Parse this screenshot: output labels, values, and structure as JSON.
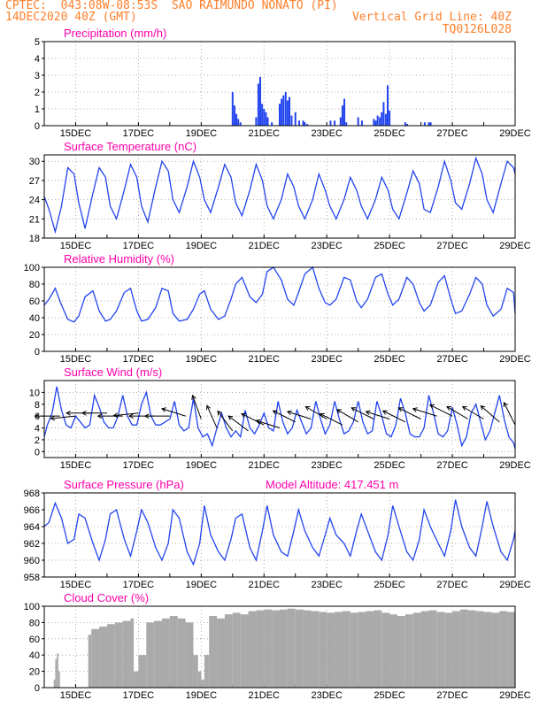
{
  "header": {
    "org_line": "CPTEC:  043:08W-08:53S  SAO RAIMUNDO NONATO (PI)",
    "date_line": "14DEC2020 40Z (GMT)",
    "grid_note": "Vertical Grid Line: 40Z",
    "code": "TQ0126L028"
  },
  "colors": {
    "header": "#ff7f2a",
    "panel_title": "#ff00aa",
    "series": "#2244ee",
    "cloud": "#aaaaaa",
    "grid": "#999999",
    "arrow": "#000000"
  },
  "x_axis": {
    "ticks": [
      "15DEC",
      "17DEC",
      "19DEC",
      "21DEC",
      "23DEC",
      "25DEC",
      "27DEC",
      "29DEC"
    ],
    "tick_days": [
      15,
      17,
      19,
      21,
      23,
      25,
      27,
      29
    ],
    "xlim_days": [
      14.0,
      29.0
    ]
  },
  "chart_data": [
    {
      "type": "bar",
      "title": "Precipitation (mm/h)",
      "ylim": [
        0,
        5
      ],
      "yticks": [
        0,
        1,
        2,
        3,
        4,
        5
      ],
      "x": [
        20.0,
        20.06,
        20.12,
        20.18,
        20.25,
        20.75,
        20.82,
        20.88,
        20.94,
        21.0,
        21.06,
        21.12,
        21.25,
        21.5,
        21.56,
        21.62,
        21.69,
        21.75,
        21.81,
        21.88,
        22.0,
        22.12,
        22.25,
        22.3,
        22.38,
        23.12,
        23.25,
        23.44,
        23.5,
        23.56,
        23.62,
        24.0,
        24.12,
        24.5,
        24.56,
        24.62,
        24.69,
        24.75,
        24.81,
        24.88,
        24.94,
        25.0,
        25.5,
        25.56,
        26.12,
        26.25,
        26.31
      ],
      "values": [
        2.0,
        1.2,
        0.7,
        0.4,
        0.2,
        0.5,
        2.5,
        2.9,
        1.3,
        1.0,
        0.8,
        0.5,
        0.2,
        1.3,
        1.6,
        1.8,
        2.0,
        1.5,
        1.7,
        0.6,
        0.8,
        0.3,
        0.3,
        0.2,
        0.1,
        0.3,
        0.3,
        0.5,
        1.2,
        1.6,
        0.2,
        0.5,
        0.3,
        0.4,
        0.3,
        0.6,
        0.5,
        0.8,
        1.4,
        0.7,
        2.4,
        0.9,
        0.2,
        0.1,
        0.2,
        0.2,
        0.2
      ]
    },
    {
      "type": "line",
      "title": "Surface Temperature (nC)",
      "ylim": [
        18,
        31
      ],
      "yticks": [
        18,
        21,
        24,
        27,
        30
      ],
      "x": [
        14.0,
        14.15,
        14.35,
        14.55,
        14.75,
        14.95,
        15.1,
        15.3,
        15.55,
        15.75,
        15.95,
        16.1,
        16.3,
        16.55,
        16.75,
        16.95,
        17.1,
        17.3,
        17.55,
        17.75,
        17.95,
        18.1,
        18.3,
        18.55,
        18.75,
        18.95,
        19.1,
        19.3,
        19.55,
        19.75,
        19.95,
        20.1,
        20.3,
        20.55,
        20.75,
        20.95,
        21.1,
        21.3,
        21.55,
        21.75,
        21.95,
        22.1,
        22.3,
        22.55,
        22.75,
        22.95,
        23.1,
        23.3,
        23.55,
        23.75,
        23.95,
        24.1,
        24.3,
        24.55,
        24.75,
        24.95,
        25.1,
        25.3,
        25.55,
        25.75,
        25.95,
        26.1,
        26.3,
        26.55,
        26.75,
        26.95,
        27.1,
        27.3,
        27.55,
        27.75,
        27.95,
        28.1,
        28.3,
        28.55,
        28.75,
        28.95,
        29.0
      ],
      "values": [
        24.5,
        22.5,
        19.0,
        23.0,
        29.0,
        28.0,
        23.5,
        19.5,
        25.0,
        29.0,
        27.5,
        23.0,
        21.0,
        25.5,
        29.5,
        27.5,
        23.0,
        20.5,
        26.0,
        30.0,
        28.5,
        24.0,
        22.0,
        26.0,
        30.0,
        27.5,
        24.0,
        22.0,
        26.0,
        29.5,
        27.5,
        23.5,
        21.5,
        25.5,
        29.5,
        27.0,
        23.0,
        21.0,
        24.0,
        28.0,
        26.0,
        23.0,
        21.0,
        24.0,
        28.0,
        25.5,
        23.0,
        21.0,
        24.0,
        27.5,
        25.5,
        23.0,
        21.0,
        24.0,
        27.5,
        25.5,
        22.5,
        21.0,
        25.0,
        28.5,
        26.5,
        22.5,
        22.0,
        26.0,
        30.0,
        27.0,
        23.5,
        22.5,
        26.5,
        30.5,
        28.0,
        24.0,
        22.0,
        26.5,
        30.0,
        29.0,
        28.0
      ]
    },
    {
      "type": "line",
      "title": "Relative Humidity (%)",
      "ylim": [
        0,
        100
      ],
      "yticks": [
        0,
        20,
        40,
        60,
        80,
        100
      ],
      "x": [
        14.0,
        14.15,
        14.35,
        14.55,
        14.75,
        14.95,
        15.1,
        15.3,
        15.55,
        15.75,
        15.95,
        16.1,
        16.3,
        16.55,
        16.75,
        16.95,
        17.1,
        17.3,
        17.55,
        17.75,
        17.95,
        18.1,
        18.3,
        18.55,
        18.75,
        18.95,
        19.1,
        19.3,
        19.55,
        19.75,
        19.95,
        20.1,
        20.3,
        20.55,
        20.75,
        20.95,
        21.1,
        21.3,
        21.55,
        21.75,
        21.95,
        22.1,
        22.3,
        22.55,
        22.75,
        22.95,
        23.1,
        23.3,
        23.55,
        23.75,
        23.95,
        24.1,
        24.3,
        24.55,
        24.75,
        24.95,
        25.1,
        25.3,
        25.55,
        25.75,
        25.95,
        26.1,
        26.3,
        26.55,
        26.75,
        26.95,
        27.1,
        27.3,
        27.55,
        27.75,
        27.95,
        28.1,
        28.3,
        28.55,
        28.75,
        28.95,
        29.0
      ],
      "values": [
        55,
        62,
        75,
        55,
        38,
        35,
        42,
        65,
        72,
        48,
        36,
        38,
        48,
        70,
        75,
        48,
        36,
        38,
        52,
        75,
        72,
        45,
        36,
        38,
        50,
        68,
        72,
        50,
        38,
        42,
        62,
        80,
        88,
        65,
        58,
        68,
        95,
        100,
        85,
        62,
        55,
        70,
        92,
        100,
        75,
        58,
        55,
        62,
        88,
        85,
        60,
        52,
        62,
        88,
        92,
        68,
        55,
        62,
        88,
        80,
        58,
        48,
        55,
        82,
        90,
        62,
        45,
        48,
        68,
        88,
        80,
        55,
        42,
        50,
        75,
        70,
        45
      ]
    },
    {
      "type": "line",
      "title": "Surface Wind (m/s)",
      "ylim": [
        -1,
        12
      ],
      "yticks": [
        0,
        2,
        4,
        6,
        8,
        10
      ],
      "x": [
        14.0,
        14.1,
        14.25,
        14.4,
        14.55,
        14.7,
        14.85,
        15.0,
        15.15,
        15.3,
        15.45,
        15.6,
        15.75,
        15.9,
        16.05,
        16.2,
        16.35,
        16.5,
        16.65,
        16.8,
        16.95,
        17.1,
        17.25,
        17.4,
        17.55,
        17.7,
        17.85,
        18.0,
        18.15,
        18.3,
        18.45,
        18.6,
        18.75,
        18.9,
        19.05,
        19.2,
        19.35,
        19.5,
        19.65,
        19.8,
        19.95,
        20.1,
        20.25,
        20.4,
        20.55,
        20.7,
        20.85,
        21.0,
        21.15,
        21.3,
        21.45,
        21.6,
        21.75,
        21.9,
        22.05,
        22.2,
        22.35,
        22.5,
        22.65,
        22.8,
        22.95,
        23.1,
        23.25,
        23.4,
        23.55,
        23.7,
        23.85,
        24.0,
        24.15,
        24.3,
        24.45,
        24.6,
        24.75,
        24.9,
        25.05,
        25.2,
        25.35,
        25.5,
        25.65,
        25.8,
        25.95,
        26.1,
        26.25,
        26.4,
        26.55,
        26.7,
        26.85,
        27.0,
        27.15,
        27.3,
        27.45,
        27.6,
        27.75,
        27.9,
        28.05,
        28.2,
        28.35,
        28.5,
        28.65,
        28.8,
        28.95,
        29.0
      ],
      "values": [
        2.5,
        4.5,
        6.5,
        11.0,
        7.0,
        4.5,
        4.0,
        6.0,
        5.0,
        4.0,
        4.5,
        9.5,
        7.5,
        5.0,
        4.0,
        4.0,
        6.0,
        9.5,
        6.0,
        4.5,
        4.5,
        8.0,
        10.0,
        6.0,
        4.5,
        4.5,
        5.0,
        5.5,
        8.5,
        4.5,
        3.5,
        4.0,
        9.0,
        4.0,
        2.5,
        3.0,
        1.0,
        4.0,
        6.5,
        4.0,
        2.5,
        3.5,
        2.5,
        7.0,
        4.0,
        3.0,
        4.5,
        6.5,
        4.0,
        3.5,
        8.5,
        5.0,
        3.0,
        4.0,
        7.0,
        5.0,
        3.0,
        4.0,
        8.5,
        5.5,
        3.0,
        4.5,
        8.5,
        5.5,
        3.0,
        3.5,
        5.0,
        8.5,
        5.0,
        3.0,
        3.5,
        8.5,
        6.0,
        3.0,
        2.5,
        4.5,
        9.0,
        6.5,
        3.0,
        2.5,
        2.5,
        4.0,
        9.5,
        6.5,
        3.0,
        2.5,
        3.5,
        7.5,
        4.5,
        1.0,
        2.5,
        6.5,
        8.0,
        5.0,
        2.0,
        3.5,
        6.5,
        9.5,
        5.5,
        2.5,
        1.5,
        0.5
      ],
      "arrows": {
        "x": [
          14.5,
          15.0,
          15.5,
          16.0,
          16.5,
          17.0,
          17.5,
          18.0,
          18.5,
          19.0,
          19.5,
          20.0,
          20.5,
          21.0,
          21.5,
          22.0,
          22.5,
          23.0,
          23.5,
          24.0,
          24.5,
          25.0,
          25.5,
          26.0,
          26.5,
          27.0,
          27.5,
          28.0,
          28.5,
          29.0
        ],
        "speed": [
          6.0,
          6.0,
          6.5,
          6.5,
          6.0,
          6.5,
          6.0,
          6.0,
          6.0,
          5.5,
          4.0,
          3.5,
          3.5,
          4.5,
          4.0,
          5.0,
          5.5,
          5.5,
          4.5,
          5.0,
          5.5,
          5.5,
          5.0,
          5.5,
          6.0,
          6.0,
          5.5,
          5.5,
          5.0,
          4.5
        ],
        "u": [
          -1.0,
          -1.0,
          -1.0,
          -1.0,
          -1.0,
          -1.0,
          -1.0,
          -1.0,
          -0.95,
          -0.35,
          -0.4,
          -0.6,
          -0.8,
          -0.9,
          -0.95,
          -0.9,
          -0.95,
          -0.85,
          -0.9,
          -0.85,
          -0.9,
          -0.95,
          -0.9,
          -0.9,
          -0.95,
          -0.9,
          -0.85,
          -0.85,
          -0.75,
          -0.45
        ],
        "v": [
          0.0,
          0.1,
          0.0,
          0.0,
          0.0,
          0.1,
          0.0,
          0.0,
          -0.3,
          -0.95,
          -0.9,
          -0.8,
          -0.6,
          -0.45,
          -0.3,
          -0.45,
          -0.3,
          -0.5,
          -0.45,
          -0.5,
          -0.45,
          -0.3,
          -0.45,
          -0.45,
          -0.3,
          -0.45,
          -0.5,
          -0.5,
          -0.65,
          -0.9
        ]
      }
    },
    {
      "type": "line",
      "title": "Surface Pressure (hPa)",
      "annotation": "Model Altitude: 417.451 m",
      "ylim": [
        958,
        968
      ],
      "yticks": [
        958,
        960,
        962,
        964,
        966,
        968
      ],
      "x": [
        14.0,
        14.15,
        14.35,
        14.55,
        14.75,
        14.95,
        15.1,
        15.3,
        15.55,
        15.75,
        15.95,
        16.1,
        16.3,
        16.55,
        16.75,
        16.95,
        17.1,
        17.3,
        17.55,
        17.75,
        17.95,
        18.1,
        18.3,
        18.55,
        18.75,
        18.95,
        19.1,
        19.3,
        19.55,
        19.75,
        19.95,
        20.1,
        20.3,
        20.55,
        20.75,
        20.95,
        21.1,
        21.3,
        21.55,
        21.75,
        21.95,
        22.1,
        22.3,
        22.55,
        22.75,
        22.95,
        23.1,
        23.3,
        23.55,
        23.75,
        23.95,
        24.1,
        24.3,
        24.55,
        24.75,
        24.95,
        25.1,
        25.3,
        25.55,
        25.75,
        25.95,
        26.1,
        26.3,
        26.55,
        26.75,
        26.95,
        27.1,
        27.3,
        27.55,
        27.75,
        27.95,
        28.1,
        28.3,
        28.55,
        28.75,
        28.95,
        29.0
      ],
      "values": [
        964.0,
        964.5,
        966.8,
        965.0,
        962.0,
        962.5,
        965.5,
        965.0,
        962.0,
        960.0,
        962.5,
        965.5,
        966.0,
        962.5,
        960.5,
        963.5,
        966.0,
        964.5,
        961.5,
        960.0,
        962.0,
        966.0,
        965.0,
        961.0,
        959.5,
        962.0,
        966.5,
        963.0,
        961.0,
        960.0,
        962.5,
        965.0,
        965.5,
        961.5,
        960.0,
        963.5,
        966.5,
        963.0,
        961.0,
        960.5,
        963.5,
        966.0,
        963.5,
        961.5,
        960.5,
        963.0,
        965.0,
        963.0,
        962.0,
        960.5,
        963.5,
        965.5,
        963.5,
        961.0,
        960.0,
        963.0,
        966.5,
        964.0,
        961.0,
        960.0,
        962.5,
        966.0,
        964.0,
        962.0,
        960.5,
        963.5,
        967.2,
        964.0,
        961.5,
        960.5,
        964.0,
        967.0,
        964.0,
        961.0,
        960.0,
        962.5,
        963.5
      ]
    },
    {
      "type": "bar",
      "title": "Cloud Cover (%)",
      "ylim": [
        0,
        100
      ],
      "yticks": [
        0,
        20,
        40,
        60,
        80,
        100
      ],
      "x": [
        14.25,
        14.3,
        14.35,
        14.4,
        14.45,
        14.5,
        15.0,
        15.25,
        15.4,
        15.5,
        15.75,
        16.0,
        16.25,
        16.5,
        16.75,
        16.85,
        17.0,
        17.25,
        17.5,
        17.75,
        18.0,
        18.25,
        18.5,
        18.75,
        18.9,
        19.0,
        19.1,
        19.25,
        19.5,
        19.75,
        20.0,
        20.25,
        20.5,
        20.75,
        21.0,
        21.25,
        21.5,
        21.75,
        22.0,
        22.25,
        22.5,
        22.75,
        23.0,
        23.25,
        23.5,
        23.75,
        24.0,
        24.25,
        24.5,
        24.75,
        25.0,
        25.25,
        25.5,
        25.75,
        26.0,
        26.25,
        26.5,
        26.75,
        27.0,
        27.25,
        27.5,
        27.75,
        28.0,
        28.25,
        28.5,
        28.75,
        29.0
      ],
      "values": [
        0,
        10,
        35,
        42,
        20,
        0,
        0,
        0,
        65,
        72,
        75,
        78,
        80,
        82,
        85,
        20,
        40,
        80,
        82,
        85,
        88,
        85,
        80,
        40,
        20,
        10,
        40,
        88,
        85,
        90,
        92,
        90,
        94,
        95,
        96,
        95,
        96,
        97,
        96,
        95,
        94,
        93,
        92,
        93,
        94,
        92,
        93,
        94,
        95,
        92,
        90,
        88,
        90,
        92,
        94,
        95,
        93,
        92,
        94,
        96,
        95,
        94,
        93,
        92,
        94,
        93,
        88
      ]
    }
  ]
}
